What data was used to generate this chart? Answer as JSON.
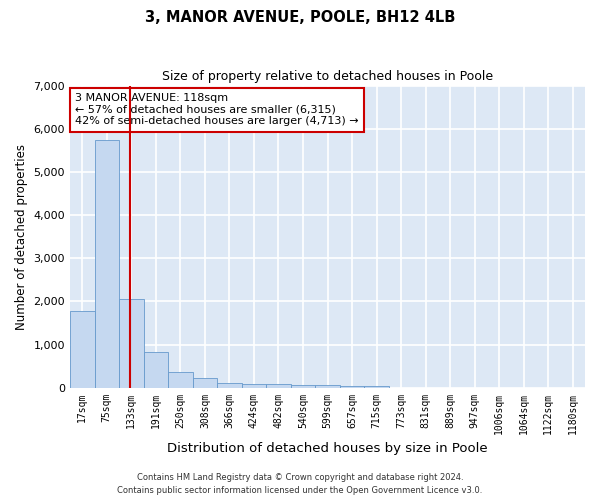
{
  "title_line1": "3, MANOR AVENUE, POOLE, BH12 4LB",
  "title_line2": "Size of property relative to detached houses in Poole",
  "xlabel": "Distribution of detached houses by size in Poole",
  "ylabel": "Number of detached properties",
  "annotation_title": "3 MANOR AVENUE: 118sqm",
  "annotation_line2": "← 57% of detached houses are smaller (6,315)",
  "annotation_line3": "42% of semi-detached houses are larger (4,713) →",
  "footer_line1": "Contains HM Land Registry data © Crown copyright and database right 2024.",
  "footer_line2": "Contains public sector information licensed under the Open Government Licence v3.0.",
  "bar_color": "#c5d8f0",
  "bar_edge_color": "#6699cc",
  "background_color": "#dde8f5",
  "grid_color": "#ffffff",
  "red_line_color": "#cc0000",
  "annotation_box_color": "#ffffff",
  "annotation_box_edge": "#cc0000",
  "bin_labels": [
    "17sqm",
    "75sqm",
    "133sqm",
    "191sqm",
    "250sqm",
    "308sqm",
    "366sqm",
    "424sqm",
    "482sqm",
    "540sqm",
    "599sqm",
    "657sqm",
    "715sqm",
    "773sqm",
    "831sqm",
    "889sqm",
    "947sqm",
    "1006sqm",
    "1064sqm",
    "1122sqm",
    "1180sqm"
  ],
  "bar_heights": [
    1780,
    5730,
    2050,
    820,
    360,
    220,
    120,
    95,
    80,
    70,
    55,
    50,
    45,
    0,
    0,
    0,
    0,
    0,
    0,
    0,
    0
  ],
  "red_line_x": 1.93,
  "ylim": [
    0,
    7000
  ],
  "yticks": [
    0,
    1000,
    2000,
    3000,
    4000,
    5000,
    6000,
    7000
  ]
}
